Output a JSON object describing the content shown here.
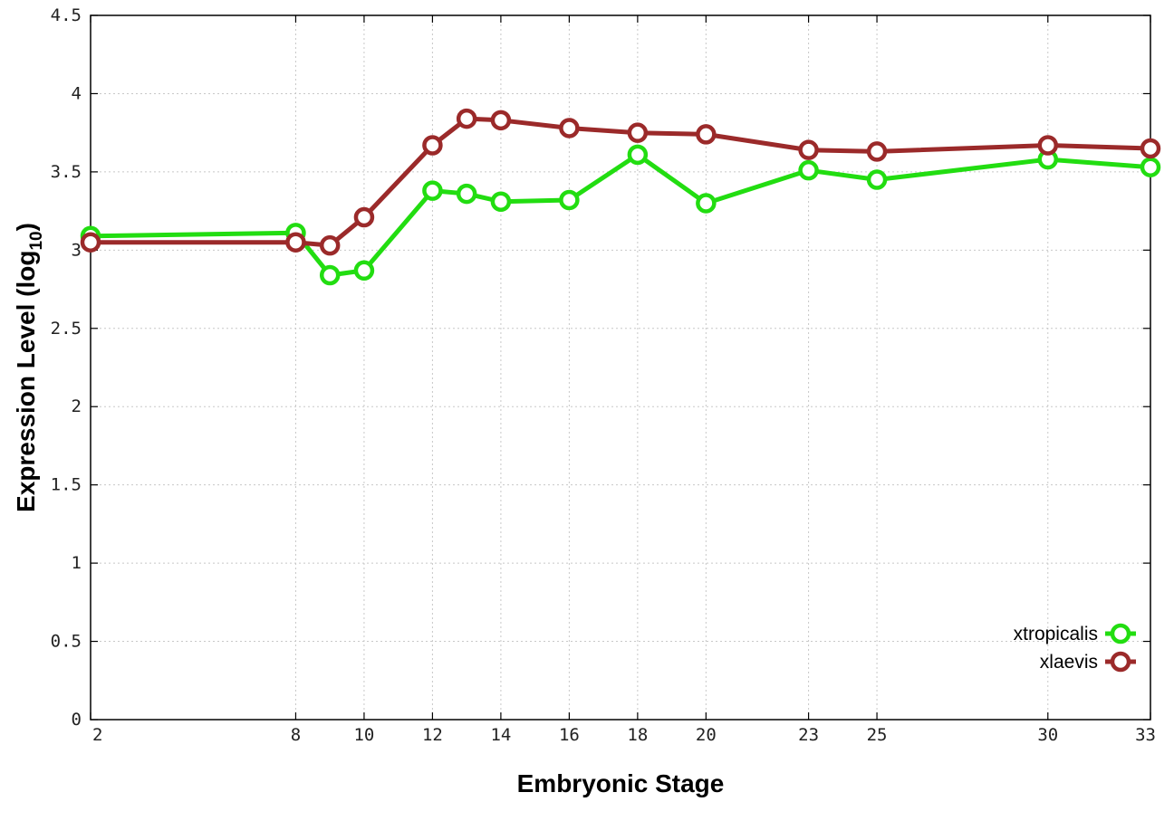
{
  "chart_data": {
    "type": "line",
    "xlabel": "Embryonic Stage",
    "ylabel": {
      "main": "Expression Level (log",
      "subscript": "10",
      "close": ")"
    },
    "xlim": [
      2,
      33
    ],
    "ylim": [
      0,
      4.5
    ],
    "x_ticks": [
      2,
      8,
      10,
      12,
      14,
      16,
      18,
      20,
      23,
      25,
      30,
      33
    ],
    "x_tick_labels": [
      "2",
      "8",
      "10",
      "12",
      "14",
      "16",
      "18",
      "20",
      "23",
      "25",
      "30",
      "33"
    ],
    "y_ticks": [
      0,
      0.5,
      1,
      1.5,
      2,
      2.5,
      3,
      3.5,
      4,
      4.5
    ],
    "y_tick_labels": [
      "0",
      "0.5",
      "1",
      "1.5",
      "2",
      "2.5",
      "3",
      "3.5",
      "4",
      "4.5"
    ],
    "grid": true,
    "legend_position": "bottom-right",
    "x": [
      2,
      8,
      9,
      10,
      12,
      13,
      14,
      16,
      18,
      20,
      23,
      25,
      30,
      33
    ],
    "series": [
      {
        "name": "xtropicalis",
        "color": "#22dd11",
        "values": [
          3.09,
          3.11,
          2.84,
          2.87,
          3.38,
          3.36,
          3.31,
          3.32,
          3.61,
          3.3,
          3.51,
          3.45,
          3.58,
          3.53
        ]
      },
      {
        "name": "xlaevis",
        "color": "#9b2a2a",
        "values": [
          3.05,
          3.05,
          3.03,
          3.21,
          3.67,
          3.84,
          3.83,
          3.78,
          3.75,
          3.74,
          3.64,
          3.63,
          3.67,
          3.65
        ]
      }
    ]
  }
}
